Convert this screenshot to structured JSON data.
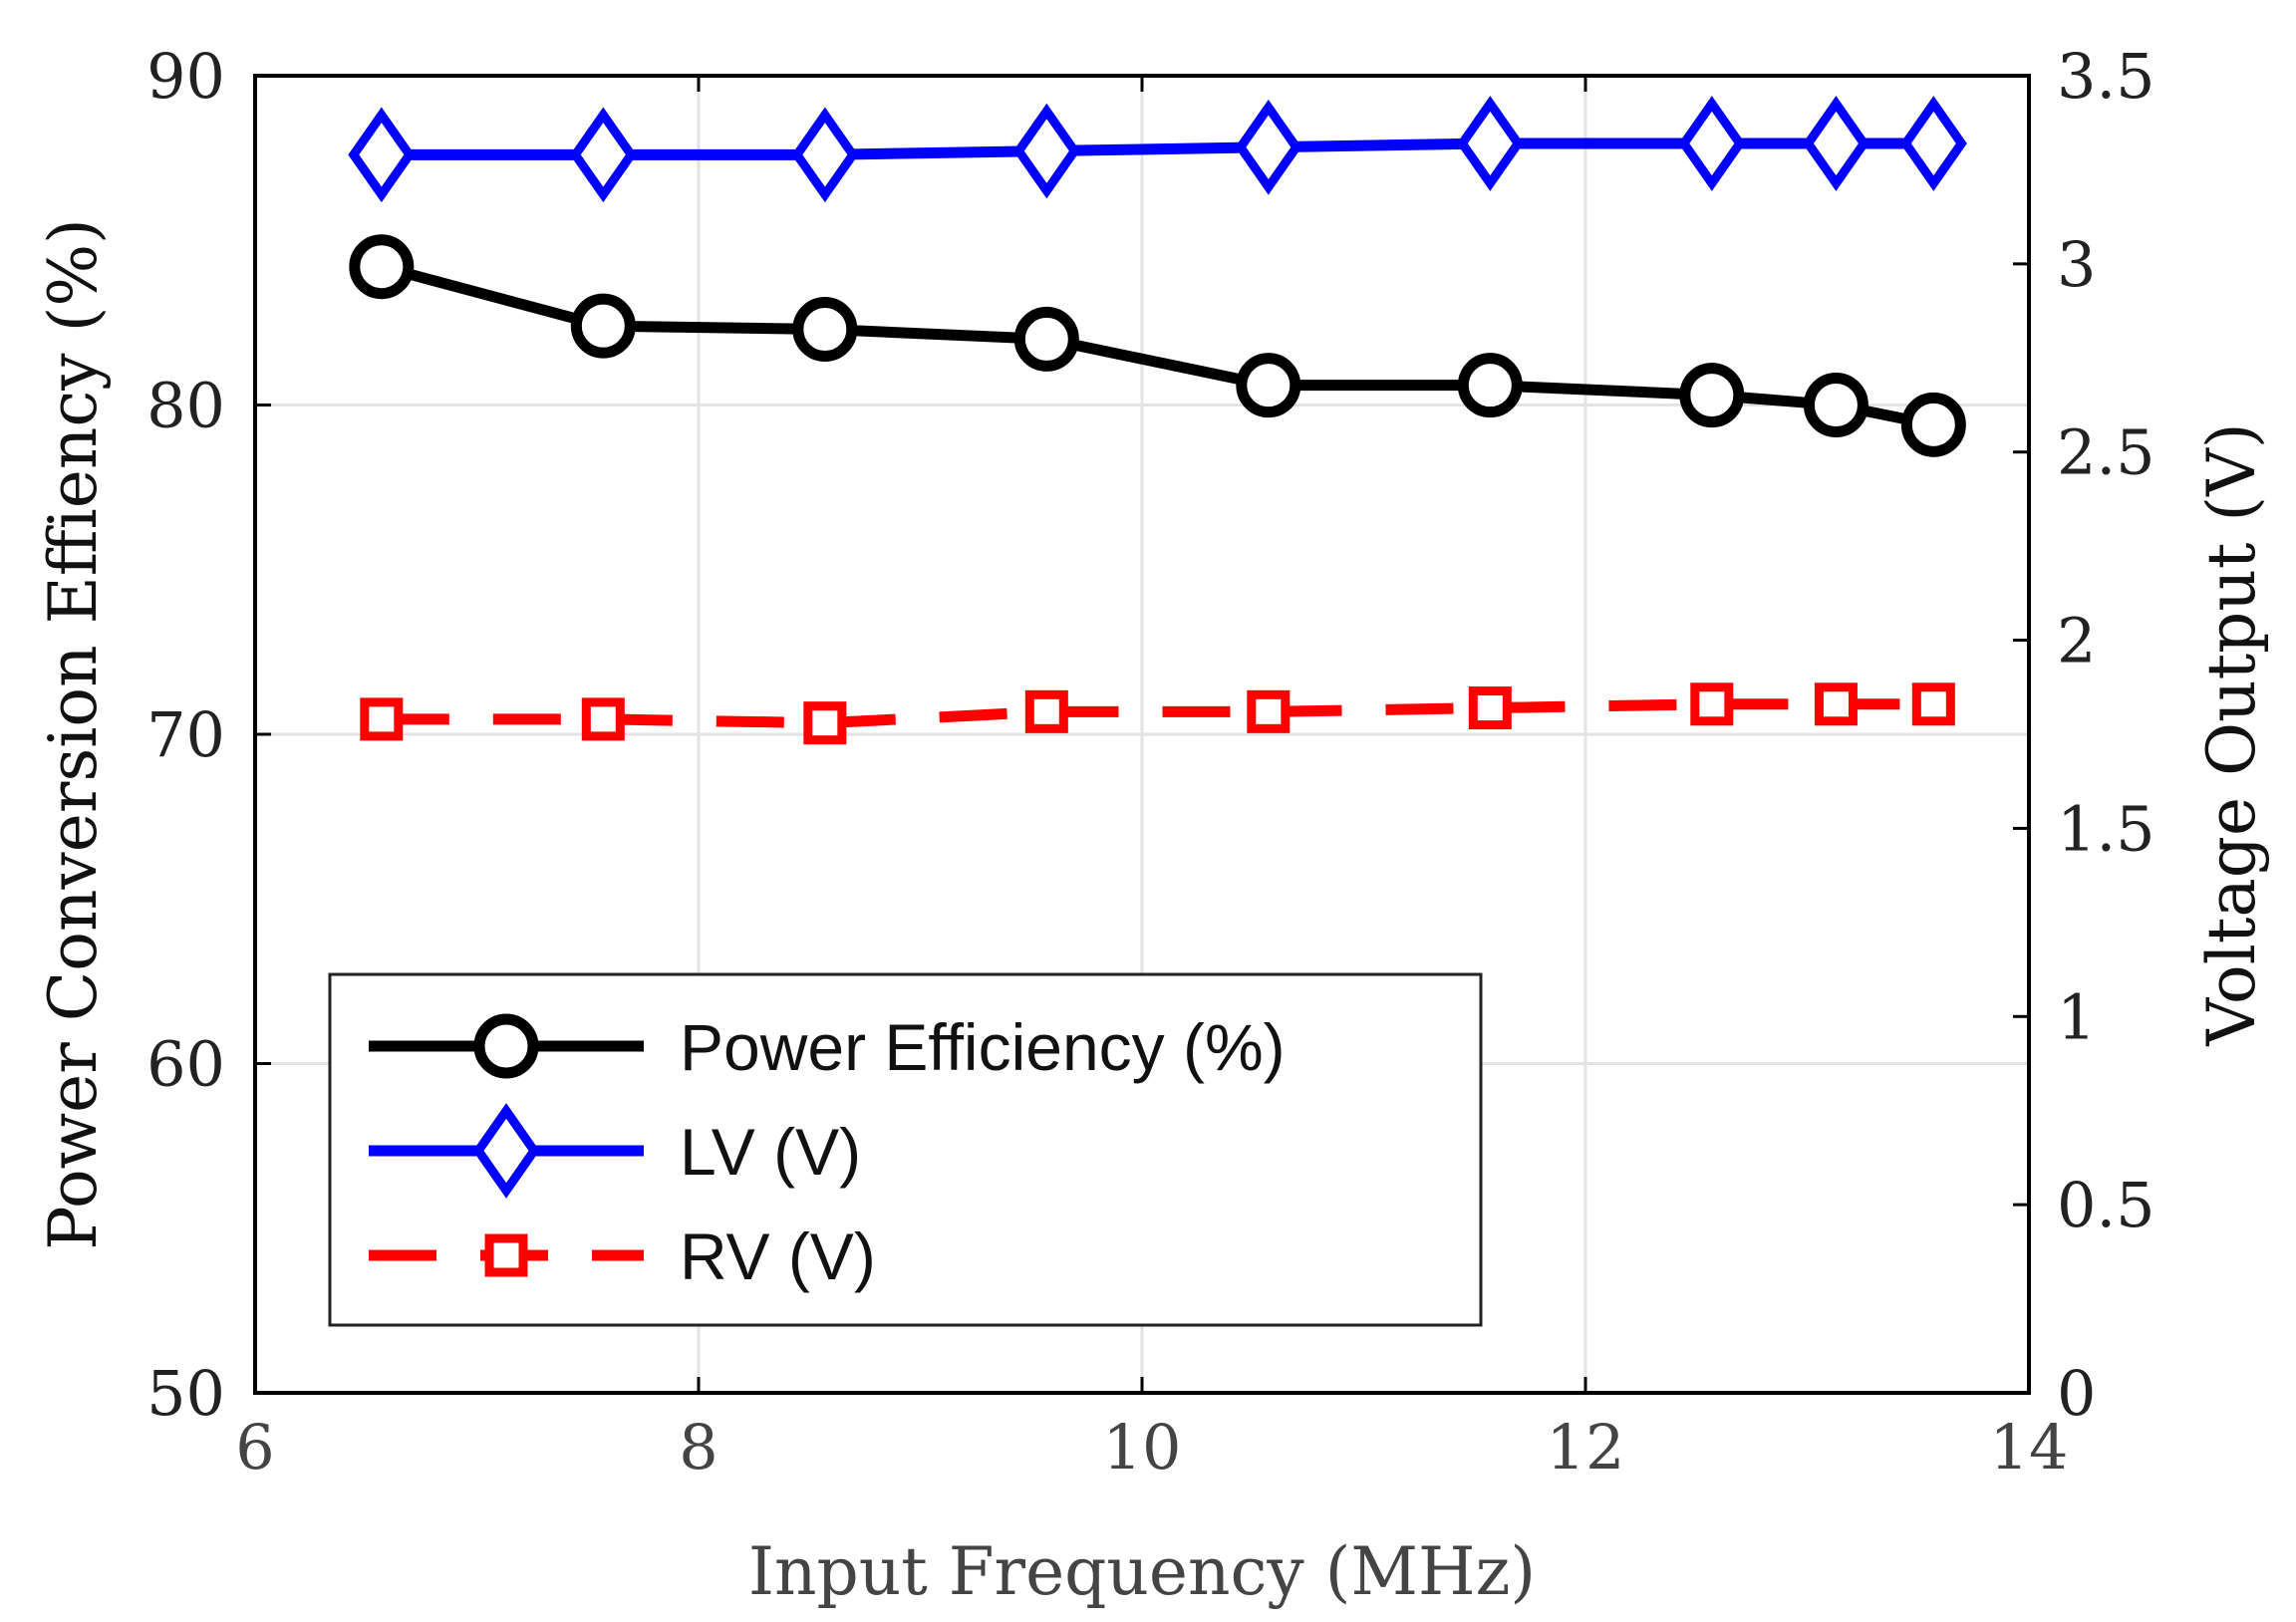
{
  "chart_data": {
    "type": "line",
    "title": "",
    "xlabel": "Input Frequency (MHz)",
    "ylabel_left": "Power Conversion Effiency (%)",
    "ylabel_right": "Voltage Output (V)",
    "xlim": [
      6,
      14
    ],
    "ylim_left": [
      50,
      90
    ],
    "ylim_right": [
      0,
      3.5
    ],
    "x_ticks": [
      "6",
      "8",
      "10",
      "12",
      "14"
    ],
    "y_left_ticks": [
      "50",
      "60",
      "70",
      "80",
      "90"
    ],
    "y_right_ticks": [
      "0",
      "0.5",
      "1",
      "1.5",
      "2",
      "2.5",
      "3",
      "3.5"
    ],
    "grid": true,
    "legend_position": "bottom-left",
    "x": [
      6.57,
      7.57,
      8.57,
      9.57,
      10.57,
      11.57,
      12.57,
      13.13,
      13.57
    ],
    "series": [
      {
        "name": "Power Efficiency (%)",
        "axis": "left",
        "color": "#000000",
        "marker": "circle",
        "line_style": "solid",
        "values": [
          84.2,
          82.4,
          82.3,
          82.0,
          80.6,
          80.6,
          80.3,
          80.0,
          79.4
        ]
      },
      {
        "name": "LV (V)",
        "axis": "right",
        "color": "#0000ff",
        "marker": "diamond",
        "line_style": "solid",
        "values": [
          3.29,
          3.29,
          3.29,
          3.3,
          3.31,
          3.32,
          3.32,
          3.32,
          3.32
        ]
      },
      {
        "name": "RV (V)",
        "axis": "right",
        "color": "#ff0000",
        "marker": "square",
        "line_style": "dashed",
        "values": [
          1.79,
          1.79,
          1.78,
          1.81,
          1.81,
          1.82,
          1.83,
          1.83,
          1.83
        ]
      }
    ]
  }
}
